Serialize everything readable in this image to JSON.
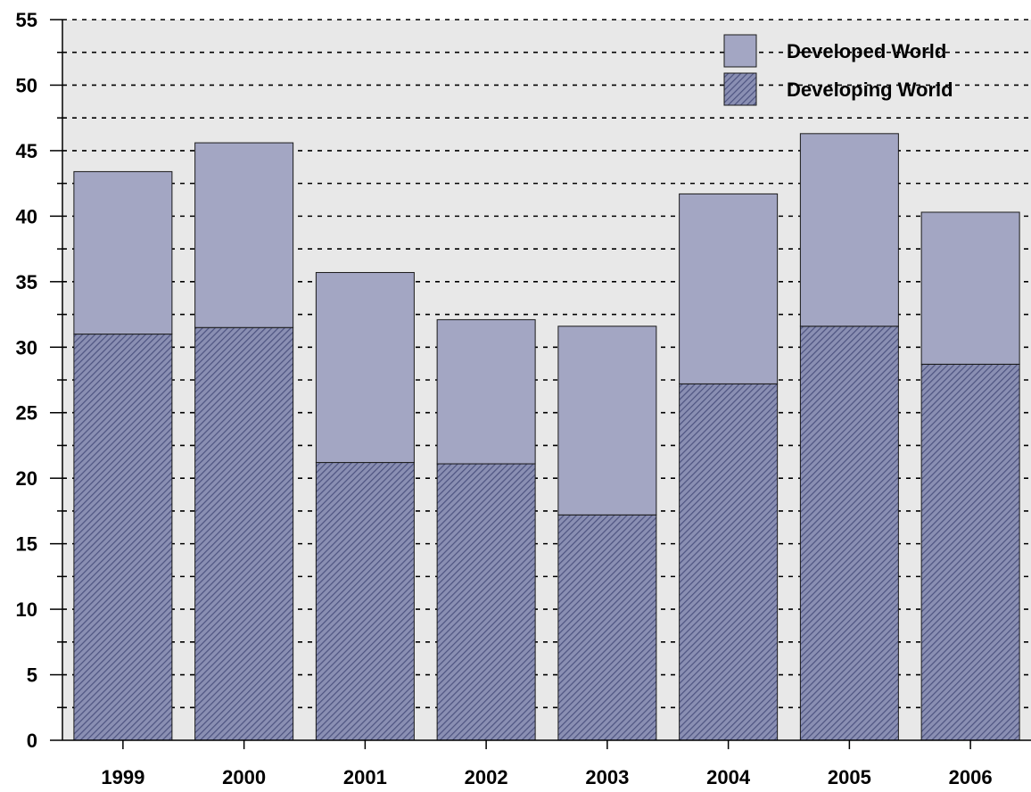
{
  "chart_data": {
    "type": "bar",
    "stacked": true,
    "categories": [
      "1999",
      "2000",
      "2001",
      "2002",
      "2003",
      "2004",
      "2005",
      "2006"
    ],
    "series": [
      {
        "name": "Developing World",
        "values": [
          31.0,
          31.5,
          21.2,
          21.1,
          17.2,
          27.2,
          31.6,
          28.7
        ],
        "color": "#7a7fa3",
        "pattern": "diagonal-hatch"
      },
      {
        "name": "Developed World",
        "values": [
          12.4,
          14.1,
          14.5,
          11.0,
          14.4,
          14.5,
          14.7,
          11.6
        ],
        "color": "#a3a6c3",
        "pattern": "solid"
      }
    ],
    "legend_order": [
      "Developed World",
      "Developing World"
    ],
    "legend_position": "top-right",
    "ylim": [
      0,
      55
    ],
    "y_ticks": [
      "0",
      "5",
      "10",
      "15",
      "20",
      "25",
      "30",
      "35",
      "40",
      "45",
      "50",
      "55"
    ],
    "gridlines": "dashed horizontal",
    "plot_background": "#e8e8e8",
    "title": "",
    "xlabel": "",
    "ylabel": ""
  }
}
